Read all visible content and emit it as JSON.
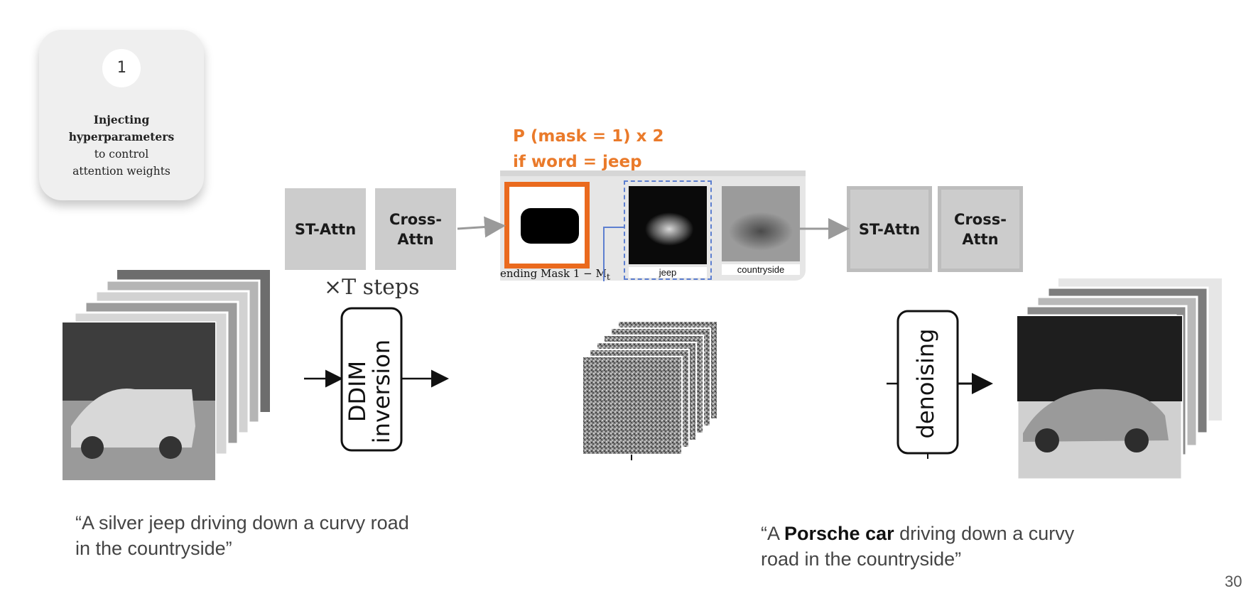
{
  "step_card": {
    "number": "1",
    "title": "Injecting hyperparameters",
    "subtitle": "to control attention weights"
  },
  "left_block": {
    "st_attn": "ST-Attn",
    "cross_attn": "Cross-\nAttn",
    "steps_label": "×T steps"
  },
  "right_block": {
    "st_attn": "ST-Attn",
    "cross_attn": "Cross-\nAttn"
  },
  "highlight": {
    "line1": "P (mask = 1) x 2",
    "line2": "if word = jeep",
    "color": "#ea7a2a"
  },
  "attention_panel": {
    "mask_label": "ending Mask 1 − M",
    "mask_subscript": "t",
    "map_captions": [
      "jeep",
      "countryside"
    ]
  },
  "ddim_box": {
    "line1": "DDIM",
    "line2": "inversion"
  },
  "denoise_box": {
    "label": "denoising"
  },
  "captions": {
    "source": "“A silver jeep driving down a curvy road in the countryside”",
    "target_prefix": "“A ",
    "target_bold": "Porsche car",
    "target_rest": " driving down a curvy road in the countryside”"
  },
  "page_number": "30"
}
